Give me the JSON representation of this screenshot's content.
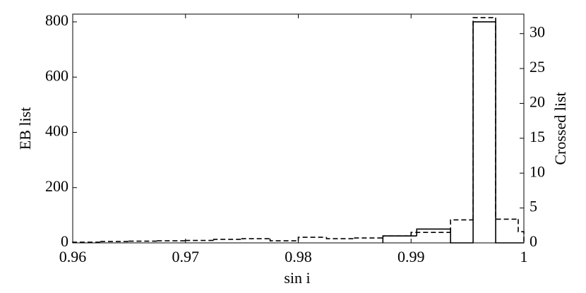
{
  "chart_data": {
    "type": "histogram",
    "xlabel": "sin i",
    "ylabel": "EB list",
    "y2label": "Crossed list",
    "xlim": [
      0.96,
      1
    ],
    "xticks": [
      0.96,
      0.97,
      0.98,
      0.99,
      1
    ],
    "ylim": [
      0,
      828
    ],
    "yticks": [
      0,
      200,
      400,
      600,
      800
    ],
    "y2lim": [
      0,
      32.8
    ],
    "y2ticks": [
      0,
      5,
      10,
      15,
      20,
      25,
      30
    ],
    "series": [
      {
        "color": "#000000",
        "dashed": false,
        "axis": "y",
        "bins": [
          0.9875,
          0.9905,
          0.9935,
          0.9955,
          0.9975,
          1
        ],
        "values": [
          25,
          50,
          0,
          800,
          0
        ]
      },
      {
        "color": "#000000",
        "dashed": true,
        "axis": "y2",
        "bins": [
          0.96,
          0.9625,
          0.965,
          0.9675,
          0.97,
          0.9725,
          0.975,
          0.9775,
          0.98,
          0.9825,
          0.985,
          0.9875,
          0.99,
          0.9935,
          0.9955,
          0.9975,
          0.9995,
          1
        ],
        "values": [
          0.1,
          0.2,
          0.25,
          0.3,
          0.35,
          0.5,
          0.6,
          0.3,
          0.8,
          0.6,
          0.7,
          1.0,
          1.5,
          3.3,
          32.3,
          3.4,
          1.6
        ]
      }
    ]
  }
}
